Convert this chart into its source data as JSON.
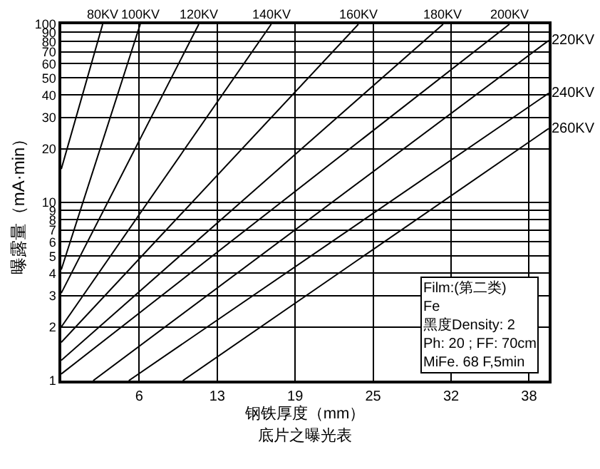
{
  "chart_data": {
    "type": "line",
    "title": "底片之曝光表",
    "xlabel": "钢铁厚度（mm）",
    "ylabel": "曝露量（mA·min）",
    "xlim": [
      0,
      39.7
    ],
    "ylim": [
      1,
      100
    ],
    "log": "y",
    "grid": true,
    "legend": false,
    "marker": "none",
    "line_style": "solid",
    "xticks": [
      {
        "value": 6.35,
        "label": "6"
      },
      {
        "value": 12.7,
        "label": "13"
      },
      {
        "value": 19.05,
        "label": "19"
      },
      {
        "value": 25.4,
        "label": "25"
      },
      {
        "value": 31.75,
        "label": "32"
      },
      {
        "value": 38.1,
        "label": "38"
      }
    ],
    "yticks": [
      1,
      2,
      3,
      4,
      5,
      6,
      7,
      8,
      9,
      10,
      20,
      30,
      40,
      50,
      60,
      70,
      80,
      90,
      100
    ],
    "series": [
      {
        "name": "80KV",
        "color": "#000000",
        "x": [
          0,
          3.37
        ],
        "values": [
          15.4,
          100
        ]
      },
      {
        "name": "100KV",
        "color": "#000000",
        "x": [
          0,
          6.43
        ],
        "values": [
          4.2,
          100
        ]
      },
      {
        "name": "120KV",
        "color": "#000000",
        "x": [
          0,
          11.2
        ],
        "values": [
          3.1,
          100
        ]
      },
      {
        "name": "140KV",
        "color": "#000000",
        "x": [
          0,
          17.1
        ],
        "values": [
          2.0,
          100
        ]
      },
      {
        "name": "160KV",
        "color": "#000000",
        "x": [
          0,
          24.2
        ],
        "values": [
          1.64,
          100
        ]
      },
      {
        "name": "180KV",
        "color": "#000000",
        "x": [
          0,
          31.1
        ],
        "values": [
          1.3,
          100
        ]
      },
      {
        "name": "200KV",
        "color": "#000000",
        "x": [
          0,
          36.5
        ],
        "values": [
          1.09,
          100
        ]
      },
      {
        "name": "220KV",
        "color": "#000000",
        "x": [
          2.6,
          39.7
        ],
        "values": [
          1,
          81
        ]
      },
      {
        "name": "240KV",
        "color": "#000000",
        "x": [
          5.5,
          39.7
        ],
        "values": [
          1,
          41
        ]
      },
      {
        "name": "260KV",
        "color": "#000000",
        "x": [
          9.9,
          39.7
        ],
        "values": [
          1,
          26
        ]
      }
    ],
    "annotations": [
      "Film:(第二类)",
      "Fe",
      "黑度Density: 2",
      "Ph: 20 ; FF: 70cm",
      "MiFe. 68 F,5min"
    ]
  }
}
